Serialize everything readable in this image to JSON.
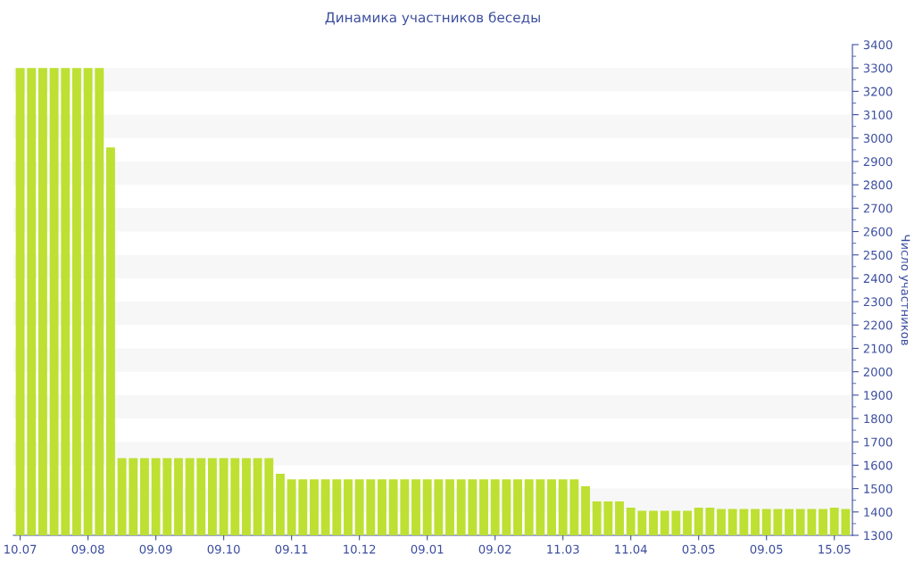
{
  "chart_data": {
    "type": "bar",
    "title": "Динамика участников беседы",
    "ylabel": "Число участников",
    "categories": [
      "10.07",
      null,
      null,
      null,
      null,
      null,
      "09.08",
      null,
      null,
      null,
      null,
      null,
      "09.09",
      null,
      null,
      null,
      null,
      null,
      "09.10",
      null,
      null,
      null,
      null,
      null,
      "09.11",
      null,
      null,
      null,
      null,
      null,
      "10.12",
      null,
      null,
      null,
      null,
      null,
      "09.01",
      null,
      null,
      null,
      null,
      null,
      "09.02",
      null,
      null,
      null,
      null,
      null,
      "11.03",
      null,
      null,
      null,
      null,
      null,
      "11.04",
      null,
      null,
      null,
      null,
      null,
      "03.05",
      null,
      null,
      null,
      null,
      null,
      "09.05",
      null,
      null,
      null,
      null,
      null,
      "15.05",
      null
    ],
    "values": [
      3300,
      3300,
      3300,
      3300,
      3300,
      3300,
      3300,
      3300,
      2960,
      1630,
      1630,
      1630,
      1630,
      1630,
      1630,
      1630,
      1630,
      1630,
      1630,
      1630,
      1630,
      1630,
      1630,
      1563,
      1540,
      1540,
      1540,
      1540,
      1540,
      1540,
      1540,
      1540,
      1540,
      1540,
      1540,
      1540,
      1540,
      1540,
      1540,
      1540,
      1540,
      1540,
      1540,
      1540,
      1540,
      1540,
      1540,
      1540,
      1540,
      1540,
      1510,
      1445,
      1445,
      1445,
      1418,
      1405,
      1405,
      1405,
      1405,
      1405,
      1418,
      1418,
      1413,
      1413,
      1413,
      1413,
      1413,
      1413,
      1413,
      1413,
      1413,
      1413,
      1418,
      1413
    ],
    "color": "#bde032",
    "ylim": [
      1300,
      3400
    ],
    "yticks": [
      1300,
      {
        "value": 1350,
        "label": null
      },
      1400,
      {
        "value": 1450,
        "label": null
      },
      1500,
      {
        "value": 1550,
        "label": null
      },
      1600,
      {
        "value": 1650,
        "label": null
      },
      1700,
      {
        "value": 1750,
        "label": null
      },
      1800,
      {
        "value": 1850,
        "label": null
      },
      1900,
      {
        "value": 1950,
        "label": null
      },
      2000,
      {
        "value": 2050,
        "label": null
      },
      2100,
      {
        "value": 2150,
        "label": null
      },
      2200,
      {
        "value": 2250,
        "label": null
      },
      2300,
      {
        "value": 2350,
        "label": null
      },
      2400,
      {
        "value": 2450,
        "label": null
      },
      2500,
      {
        "value": 2550,
        "label": null
      },
      2600,
      {
        "value": 2650,
        "label": null
      },
      2700,
      {
        "value": 2750,
        "label": null
      },
      2800,
      {
        "value": 2850,
        "label": null
      },
      2900,
      {
        "value": 2950,
        "label": null
      },
      3000,
      {
        "value": 3050,
        "label": null
      },
      3100,
      {
        "value": 3150,
        "label": null
      },
      3200,
      {
        "value": 3250,
        "label": null
      },
      3300,
      {
        "value": 3350,
        "label": null
      },
      3400
    ],
    "bands": [
      {
        "axis": "y",
        "from": 1400,
        "to": 1500,
        "color": "#f7f7f7"
      },
      {
        "axis": "y",
        "from": 1600,
        "to": 1700,
        "color": "#f7f7f7"
      },
      {
        "axis": "y",
        "from": 1800,
        "to": 1900,
        "color": "#f7f7f7"
      },
      {
        "axis": "y",
        "from": 2000,
        "to": 2100,
        "color": "#f7f7f7"
      },
      {
        "axis": "y",
        "from": 2200,
        "to": 2300,
        "color": "#f7f7f7"
      },
      {
        "axis": "y",
        "from": 2400,
        "to": 2500,
        "color": "#f7f7f7"
      },
      {
        "axis": "y",
        "from": 2600,
        "to": 2700,
        "color": "#f7f7f7"
      },
      {
        "axis": "y",
        "from": 2800,
        "to": 2900,
        "color": "#f7f7f7"
      },
      {
        "axis": "y",
        "from": 3000,
        "to": 3100,
        "color": "#f7f7f7"
      },
      {
        "axis": "y",
        "from": 3200,
        "to": 3300,
        "color": "#f7f7f7"
      }
    ]
  }
}
